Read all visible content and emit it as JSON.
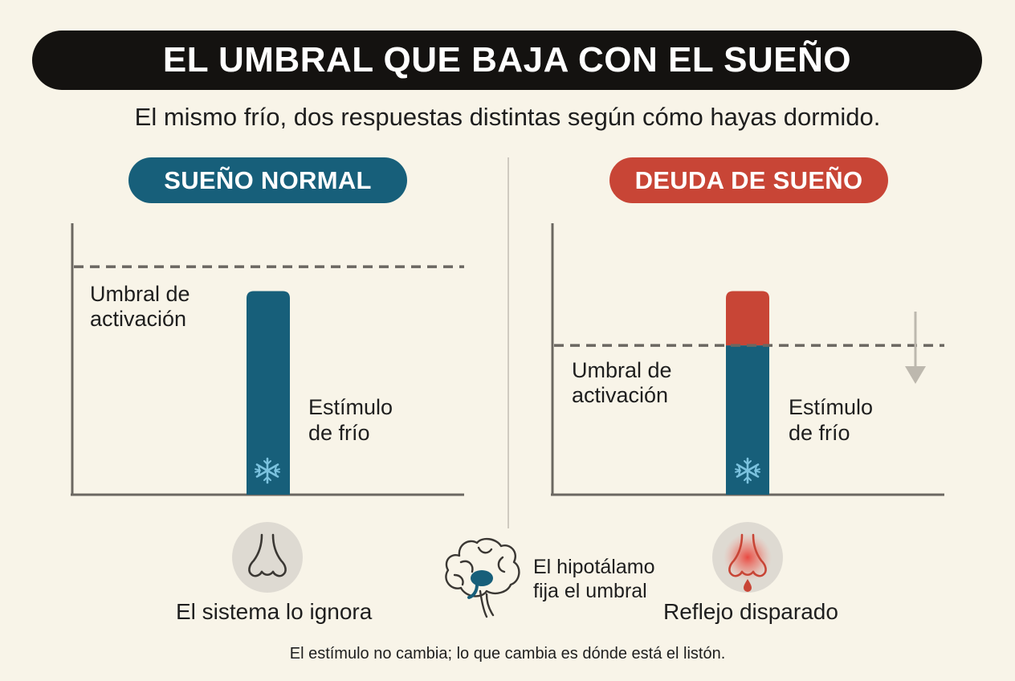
{
  "title": "EL UMBRAL QUE BAJA CON EL SUEÑO",
  "subtitle": "El mismo frío, dos respuestas distintas según cómo hayas dormido.",
  "panels": [
    {
      "label": "SUEÑO NORMAL",
      "threshold_label_1": "Umbral de",
      "threshold_label_2": "activación",
      "stimulus_label_1": "Estímulo",
      "stimulus_label_2": "de frío",
      "caption": "El sistema lo ignora",
      "accent_color": "#175f7a"
    },
    {
      "label": "DEUDA DE SUEÑO",
      "threshold_label_1": "Umbral de",
      "threshold_label_2": "activación",
      "stimulus_label_1": "Estímulo",
      "stimulus_label_2": "de frío",
      "caption": "Reflejo disparado",
      "accent_color": "#c84536"
    }
  ],
  "center_note_1": "El hipotálamo",
  "center_note_2": "fija el umbral",
  "footer": "El estímulo no cambia; lo que cambia es dónde está el listón.",
  "chart_data": [
    {
      "type": "bar",
      "stimulus_level": 0.75,
      "threshold_level": 0.84,
      "triggered": false
    },
    {
      "type": "bar",
      "stimulus_level": 0.75,
      "threshold_level": 0.55,
      "triggered": true
    }
  ]
}
